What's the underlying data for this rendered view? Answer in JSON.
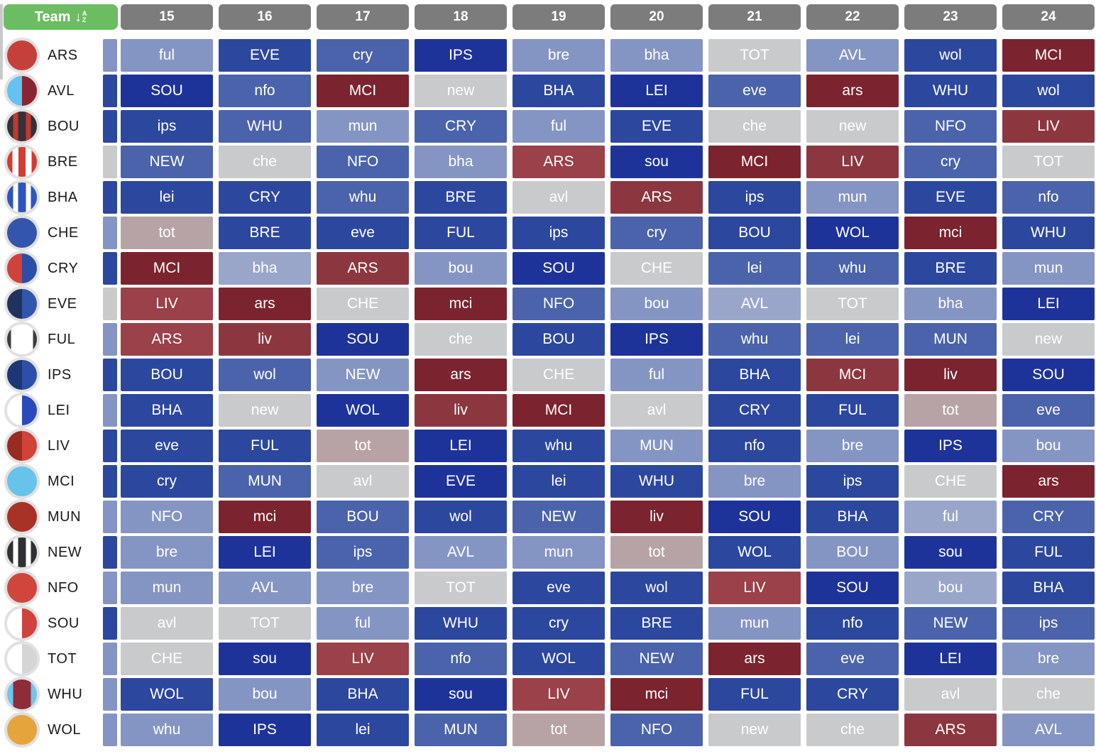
{
  "header": {
    "team_button": {
      "label": "Team",
      "sort_arrow": "↓",
      "sort_top": "A",
      "sort_bottom": "Z",
      "color": "#6cbd62"
    },
    "gameweeks": [
      "15",
      "16",
      "17",
      "18",
      "19",
      "20",
      "21",
      "22",
      "23",
      "24"
    ],
    "header_bg": "#7c7c7c"
  },
  "difficulty_palette": {
    "1": "#1e339a",
    "2": "#2c479e",
    "3": "#4a63ab",
    "4": "#8595c3",
    "5": "#9aa6c9",
    "g": "#c9cacc",
    "G": "#b7a3a5",
    "6": "#9a4149",
    "7": "#8c3740",
    "8": "#7b232e"
  },
  "teams": [
    {
      "code": "ARS",
      "badge_css": "#c6403b",
      "prev": "4",
      "fixtures": [
        {
          "opp": "ful",
          "d": "4"
        },
        {
          "opp": "EVE",
          "d": "2"
        },
        {
          "opp": "cry",
          "d": "3"
        },
        {
          "opp": "IPS",
          "d": "1"
        },
        {
          "opp": "bre",
          "d": "4"
        },
        {
          "opp": "bha",
          "d": "4"
        },
        {
          "opp": "TOT",
          "d": "g"
        },
        {
          "opp": "AVL",
          "d": "4"
        },
        {
          "opp": "wol",
          "d": "2"
        },
        {
          "opp": "MCI",
          "d": "8"
        }
      ]
    },
    {
      "code": "AVL",
      "badge_css": "linear-gradient(90deg,#63c2f0 0 50%,#8a2433 50% 100%)",
      "prev": "2",
      "fixtures": [
        {
          "opp": "SOU",
          "d": "1"
        },
        {
          "opp": "nfo",
          "d": "3"
        },
        {
          "opp": "MCI",
          "d": "8"
        },
        {
          "opp": "new",
          "d": "g"
        },
        {
          "opp": "BHA",
          "d": "2"
        },
        {
          "opp": "LEI",
          "d": "1"
        },
        {
          "opp": "eve",
          "d": "3"
        },
        {
          "opp": "ars",
          "d": "8"
        },
        {
          "opp": "WHU",
          "d": "2"
        },
        {
          "opp": "wol",
          "d": "2"
        }
      ]
    },
    {
      "code": "BOU",
      "badge_css": "linear-gradient(90deg,#353137 0 20%,#c0392f 20% 37%,#353137 37% 63%,#c0392f 63% 80%,#353137 80% 100%)",
      "prev": "2",
      "fixtures": [
        {
          "opp": "ips",
          "d": "2"
        },
        {
          "opp": "WHU",
          "d": "3"
        },
        {
          "opp": "mun",
          "d": "4"
        },
        {
          "opp": "CRY",
          "d": "3"
        },
        {
          "opp": "ful",
          "d": "4"
        },
        {
          "opp": "EVE",
          "d": "2"
        },
        {
          "opp": "che",
          "d": "g"
        },
        {
          "opp": "new",
          "d": "g"
        },
        {
          "opp": "NFO",
          "d": "3"
        },
        {
          "opp": "LIV",
          "d": "7"
        }
      ]
    },
    {
      "code": "BRE",
      "badge_css": "linear-gradient(90deg,#d23c33 0 18%,#ffffff 18% 38%,#d23c33 38% 62%,#ffffff 62% 82%,#d23c33 82% 100%)",
      "prev": "g",
      "fixtures": [
        {
          "opp": "NEW",
          "d": "3"
        },
        {
          "opp": "che",
          "d": "g"
        },
        {
          "opp": "NFO",
          "d": "3"
        },
        {
          "opp": "bha",
          "d": "4"
        },
        {
          "opp": "ARS",
          "d": "6"
        },
        {
          "opp": "sou",
          "d": "1"
        },
        {
          "opp": "MCI",
          "d": "8"
        },
        {
          "opp": "LIV",
          "d": "7"
        },
        {
          "opp": "cry",
          "d": "3"
        },
        {
          "opp": "TOT",
          "d": "g"
        }
      ]
    },
    {
      "code": "BHA",
      "badge_css": "linear-gradient(90deg,#2c55c0 0 20%,#ffffff 20% 37%,#2c55c0 37% 63%,#ffffff 63% 80%,#2c55c0 80% 100%)",
      "prev": "2",
      "fixtures": [
        {
          "opp": "lei",
          "d": "2"
        },
        {
          "opp": "CRY",
          "d": "2"
        },
        {
          "opp": "whu",
          "d": "3"
        },
        {
          "opp": "BRE",
          "d": "2"
        },
        {
          "opp": "avl",
          "d": "g"
        },
        {
          "opp": "ARS",
          "d": "7"
        },
        {
          "opp": "ips",
          "d": "2"
        },
        {
          "opp": "mun",
          "d": "4"
        },
        {
          "opp": "EVE",
          "d": "2"
        },
        {
          "opp": "nfo",
          "d": "3"
        }
      ]
    },
    {
      "code": "CHE",
      "badge_css": "#3355ab",
      "prev": "4",
      "fixtures": [
        {
          "opp": "tot",
          "d": "G"
        },
        {
          "opp": "BRE",
          "d": "2"
        },
        {
          "opp": "eve",
          "d": "2"
        },
        {
          "opp": "FUL",
          "d": "2"
        },
        {
          "opp": "ips",
          "d": "2"
        },
        {
          "opp": "cry",
          "d": "3"
        },
        {
          "opp": "BOU",
          "d": "2"
        },
        {
          "opp": "WOL",
          "d": "1"
        },
        {
          "opp": "mci",
          "d": "8"
        },
        {
          "opp": "WHU",
          "d": "2"
        }
      ]
    },
    {
      "code": "CRY",
      "badge_css": "linear-gradient(90deg,#d0423b 0 50%,#2c4ea8 50% 100%)",
      "prev": "2",
      "fixtures": [
        {
          "opp": "MCI",
          "d": "8"
        },
        {
          "opp": "bha",
          "d": "5"
        },
        {
          "opp": "ARS",
          "d": "7"
        },
        {
          "opp": "bou",
          "d": "4"
        },
        {
          "opp": "SOU",
          "d": "1"
        },
        {
          "opp": "CHE",
          "d": "g"
        },
        {
          "opp": "lei",
          "d": "3"
        },
        {
          "opp": "whu",
          "d": "3"
        },
        {
          "opp": "BRE",
          "d": "2"
        },
        {
          "opp": "mun",
          "d": "4"
        }
      ]
    },
    {
      "code": "EVE",
      "badge_css": "linear-gradient(90deg,#20335f 0 50%,#3156ab 50% 100%)",
      "prev": "g",
      "fixtures": [
        {
          "opp": "LIV",
          "d": "6"
        },
        {
          "opp": "ars",
          "d": "8"
        },
        {
          "opp": "CHE",
          "d": "g"
        },
        {
          "opp": "mci",
          "d": "8"
        },
        {
          "opp": "NFO",
          "d": "3"
        },
        {
          "opp": "bou",
          "d": "4"
        },
        {
          "opp": "AVL",
          "d": "5"
        },
        {
          "opp": "TOT",
          "d": "g"
        },
        {
          "opp": "bha",
          "d": "4"
        },
        {
          "opp": "LEI",
          "d": "1"
        }
      ]
    },
    {
      "code": "FUL",
      "badge_css": "linear-gradient(90deg,#3c3c40 0 13%,#ffffff 13% 87%,#3c3c40 87% 100%)",
      "prev": "4",
      "fixtures": [
        {
          "opp": "ARS",
          "d": "6"
        },
        {
          "opp": "liv",
          "d": "7"
        },
        {
          "opp": "SOU",
          "d": "1"
        },
        {
          "opp": "che",
          "d": "g"
        },
        {
          "opp": "BOU",
          "d": "2"
        },
        {
          "opp": "IPS",
          "d": "1"
        },
        {
          "opp": "whu",
          "d": "3"
        },
        {
          "opp": "lei",
          "d": "3"
        },
        {
          "opp": "MUN",
          "d": "3"
        },
        {
          "opp": "new",
          "d": "g"
        }
      ]
    },
    {
      "code": "IPS",
      "badge_css": "linear-gradient(90deg,#1d3676 0 50%,#2d4fa9 50% 100%)",
      "prev": "2",
      "fixtures": [
        {
          "opp": "BOU",
          "d": "2"
        },
        {
          "opp": "wol",
          "d": "3"
        },
        {
          "opp": "NEW",
          "d": "4"
        },
        {
          "opp": "ars",
          "d": "8"
        },
        {
          "opp": "CHE",
          "d": "g"
        },
        {
          "opp": "ful",
          "d": "4"
        },
        {
          "opp": "BHA",
          "d": "2"
        },
        {
          "opp": "MCI",
          "d": "7"
        },
        {
          "opp": "liv",
          "d": "8"
        },
        {
          "opp": "SOU",
          "d": "1"
        }
      ]
    },
    {
      "code": "LEI",
      "badge_css": "linear-gradient(90deg,#ffffff 0 50%,#2a49be 50% 100%)",
      "prev": "4",
      "fixtures": [
        {
          "opp": "BHA",
          "d": "2"
        },
        {
          "opp": "new",
          "d": "g"
        },
        {
          "opp": "WOL",
          "d": "1"
        },
        {
          "opp": "liv",
          "d": "7"
        },
        {
          "opp": "MCI",
          "d": "8"
        },
        {
          "opp": "avl",
          "d": "g"
        },
        {
          "opp": "CRY",
          "d": "2"
        },
        {
          "opp": "FUL",
          "d": "2"
        },
        {
          "opp": "tot",
          "d": "G"
        },
        {
          "opp": "eve",
          "d": "3"
        }
      ]
    },
    {
      "code": "LIV",
      "badge_css": "linear-gradient(90deg,#992b21 0 50%,#cf4338 50% 100%)",
      "prev": "2",
      "fixtures": [
        {
          "opp": "eve",
          "d": "2"
        },
        {
          "opp": "FUL",
          "d": "2"
        },
        {
          "opp": "tot",
          "d": "G"
        },
        {
          "opp": "LEI",
          "d": "1"
        },
        {
          "opp": "whu",
          "d": "2"
        },
        {
          "opp": "MUN",
          "d": "4"
        },
        {
          "opp": "nfo",
          "d": "2"
        },
        {
          "opp": "bre",
          "d": "4"
        },
        {
          "opp": "IPS",
          "d": "1"
        },
        {
          "opp": "bou",
          "d": "4"
        }
      ]
    },
    {
      "code": "MCI",
      "badge_css": "#66c3e9",
      "prev": "2",
      "fixtures": [
        {
          "opp": "cry",
          "d": "2"
        },
        {
          "opp": "MUN",
          "d": "3"
        },
        {
          "opp": "avl",
          "d": "g"
        },
        {
          "opp": "EVE",
          "d": "1"
        },
        {
          "opp": "lei",
          "d": "2"
        },
        {
          "opp": "WHU",
          "d": "2"
        },
        {
          "opp": "bre",
          "d": "4"
        },
        {
          "opp": "ips",
          "d": "2"
        },
        {
          "opp": "CHE",
          "d": "g"
        },
        {
          "opp": "ars",
          "d": "8"
        }
      ]
    },
    {
      "code": "MUN",
      "badge_css": "#a83226",
      "prev": "4",
      "fixtures": [
        {
          "opp": "NFO",
          "d": "4"
        },
        {
          "opp": "mci",
          "d": "8"
        },
        {
          "opp": "BOU",
          "d": "3"
        },
        {
          "opp": "wol",
          "d": "2"
        },
        {
          "opp": "NEW",
          "d": "3"
        },
        {
          "opp": "liv",
          "d": "8"
        },
        {
          "opp": "SOU",
          "d": "1"
        },
        {
          "opp": "BHA",
          "d": "2"
        },
        {
          "opp": "ful",
          "d": "5"
        },
        {
          "opp": "CRY",
          "d": "3"
        }
      ]
    },
    {
      "code": "NEW",
      "badge_css": "linear-gradient(90deg,#303034 0 20%,#ffffff 20% 37%,#303034 37% 63%,#ffffff 63% 80%,#303034 80% 100%)",
      "prev": "2",
      "fixtures": [
        {
          "opp": "bre",
          "d": "4"
        },
        {
          "opp": "LEI",
          "d": "1"
        },
        {
          "opp": "ips",
          "d": "3"
        },
        {
          "opp": "AVL",
          "d": "4"
        },
        {
          "opp": "mun",
          "d": "4"
        },
        {
          "opp": "tot",
          "d": "G"
        },
        {
          "opp": "WOL",
          "d": "2"
        },
        {
          "opp": "BOU",
          "d": "4"
        },
        {
          "opp": "sou",
          "d": "1"
        },
        {
          "opp": "FUL",
          "d": "2"
        }
      ]
    },
    {
      "code": "NFO",
      "badge_css": "#d0463d",
      "prev": "4",
      "fixtures": [
        {
          "opp": "mun",
          "d": "4"
        },
        {
          "opp": "AVL",
          "d": "4"
        },
        {
          "opp": "bre",
          "d": "4"
        },
        {
          "opp": "TOT",
          "d": "g"
        },
        {
          "opp": "eve",
          "d": "2"
        },
        {
          "opp": "wol",
          "d": "2"
        },
        {
          "opp": "LIV",
          "d": "6"
        },
        {
          "opp": "SOU",
          "d": "1"
        },
        {
          "opp": "bou",
          "d": "5"
        },
        {
          "opp": "BHA",
          "d": "2"
        }
      ]
    },
    {
      "code": "SOU",
      "badge_css": "linear-gradient(90deg,#ffffff 0 50%,#d0423b 50% 100%)",
      "prev": "2",
      "fixtures": [
        {
          "opp": "avl",
          "d": "g"
        },
        {
          "opp": "TOT",
          "d": "g"
        },
        {
          "opp": "ful",
          "d": "4"
        },
        {
          "opp": "WHU",
          "d": "2"
        },
        {
          "opp": "cry",
          "d": "2"
        },
        {
          "opp": "BRE",
          "d": "2"
        },
        {
          "opp": "mun",
          "d": "4"
        },
        {
          "opp": "nfo",
          "d": "2"
        },
        {
          "opp": "NEW",
          "d": "3"
        },
        {
          "opp": "ips",
          "d": "3"
        }
      ]
    },
    {
      "code": "TOT",
      "badge_css": "linear-gradient(90deg,#ffffff 0 50%,#d5d4d6 50% 100%)",
      "prev": "4",
      "fixtures": [
        {
          "opp": "CHE",
          "d": "g"
        },
        {
          "opp": "sou",
          "d": "1"
        },
        {
          "opp": "LIV",
          "d": "6"
        },
        {
          "opp": "nfo",
          "d": "3"
        },
        {
          "opp": "WOL",
          "d": "2"
        },
        {
          "opp": "NEW",
          "d": "3"
        },
        {
          "opp": "ars",
          "d": "8"
        },
        {
          "opp": "eve",
          "d": "3"
        },
        {
          "opp": "LEI",
          "d": "1"
        },
        {
          "opp": "bre",
          "d": "4"
        }
      ]
    },
    {
      "code": "WHU",
      "badge_css": "linear-gradient(90deg,#70c6ec 0 20%,#8e2c39 20% 80%,#70c6ec 80% 100%)",
      "prev": "4",
      "fixtures": [
        {
          "opp": "WOL",
          "d": "2"
        },
        {
          "opp": "bou",
          "d": "4"
        },
        {
          "opp": "BHA",
          "d": "2"
        },
        {
          "opp": "sou",
          "d": "1"
        },
        {
          "opp": "LIV",
          "d": "6"
        },
        {
          "opp": "mci",
          "d": "8"
        },
        {
          "opp": "FUL",
          "d": "2"
        },
        {
          "opp": "CRY",
          "d": "2"
        },
        {
          "opp": "avl",
          "d": "g"
        },
        {
          "opp": "che",
          "d": "g"
        }
      ]
    },
    {
      "code": "WOL",
      "badge_css": "#e5a43c",
      "prev": "4",
      "fixtures": [
        {
          "opp": "whu",
          "d": "4"
        },
        {
          "opp": "IPS",
          "d": "1"
        },
        {
          "opp": "lei",
          "d": "2"
        },
        {
          "opp": "MUN",
          "d": "3"
        },
        {
          "opp": "tot",
          "d": "G"
        },
        {
          "opp": "NFO",
          "d": "3"
        },
        {
          "opp": "new",
          "d": "g"
        },
        {
          "opp": "che",
          "d": "g"
        },
        {
          "opp": "ARS",
          "d": "7"
        },
        {
          "opp": "AVL",
          "d": "4"
        }
      ]
    }
  ]
}
